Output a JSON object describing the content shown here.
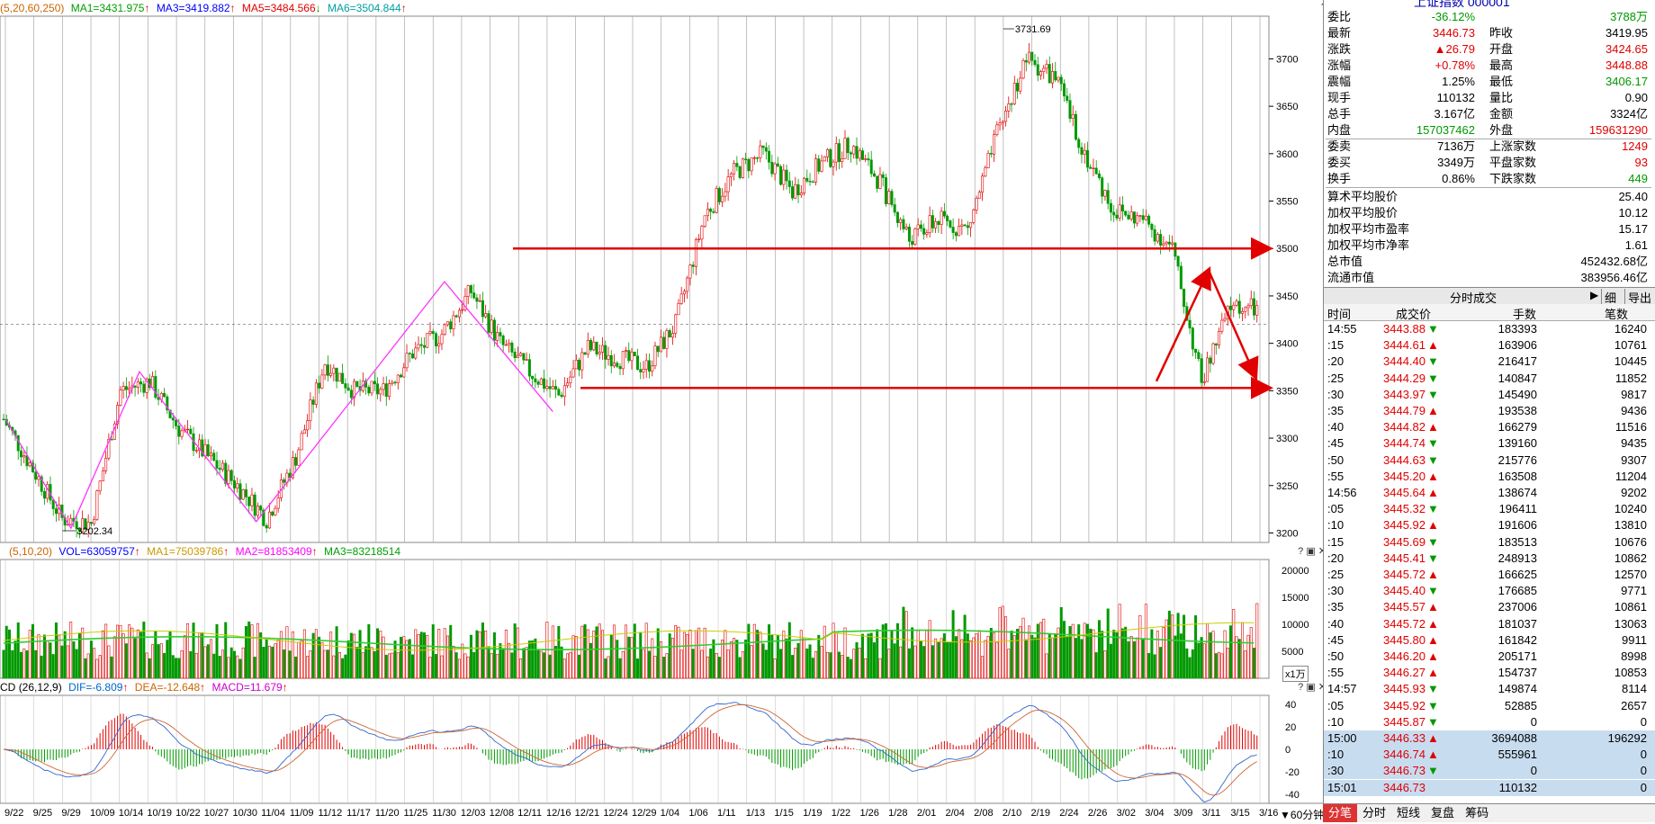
{
  "title_partial": "上证指数 000001",
  "kline": {
    "header": {
      "params": "(5,20,60,250)",
      "ma1": "MA1=3431.975",
      "ma3": "MA3=3419.882",
      "ma5": "MA5=3484.566",
      "ma6": "MA6=3504.844",
      "colors": {
        "ma1": "#00a000",
        "ma3": "#0000ff",
        "ma5": "#e00000",
        "ma6": "#00a0a0"
      }
    },
    "price_ticks": [
      "3700",
      "3650",
      "3600",
      "3550",
      "3500",
      "3450",
      "3400",
      "3350",
      "3300",
      "3250",
      "3200"
    ],
    "high_label": "3731.69",
    "low_label": "3202.34",
    "date_labels": [
      "9/22",
      "9/25",
      "9/29",
      "10/09",
      "10/14",
      "10/19",
      "10/22",
      "10/27",
      "10/30",
      "11/04",
      "11/09",
      "11/12",
      "11/17",
      "11/20",
      "11/25",
      "11/30",
      "12/03",
      "12/08",
      "12/11",
      "12/16",
      "12/21",
      "12/24",
      "12/29",
      "1/04",
      "1/06",
      "1/11",
      "1/13",
      "1/15",
      "1/19",
      "1/22",
      "1/26",
      "1/28",
      "2/01",
      "2/04",
      "2/08",
      "2/10",
      "2/19",
      "2/24",
      "2/26",
      "3/02",
      "3/04",
      "3/09",
      "3/11",
      "3/15",
      "3/16"
    ]
  },
  "volume": {
    "header": {
      "params": "(5,10,20)",
      "vol": "VOL=63059757",
      "ma1": "MA1=75039786",
      "ma2": "MA2=81853409",
      "ma3": "MA3=83218514"
    },
    "ticks": [
      "20000",
      "15000",
      "10000",
      "5000"
    ],
    "unit": "x1万"
  },
  "macd": {
    "header": {
      "label": "CD",
      "params": "(26,12,9)",
      "dif": "DIF=-6.809",
      "dea": "DEA=-12.648",
      "macd": "MACD=11.679"
    },
    "ticks": [
      "40",
      "20",
      "0",
      "-20",
      "-40"
    ]
  },
  "period_label": "60分钟",
  "quote": [
    {
      "k1": "委比",
      "v1": "-36.12%",
      "c1": "green",
      "v2": "3788万",
      "c2": "green"
    },
    {
      "k1": "最新",
      "v1": "3446.73",
      "c1": "red",
      "k2": "昨收",
      "v2": "3419.95",
      "c2": "blk"
    },
    {
      "k1": "涨跌",
      "v1": "▲26.79",
      "c1": "red",
      "k2": "开盘",
      "v2": "3424.65",
      "c2": "red"
    },
    {
      "k1": "涨幅",
      "v1": "+0.78%",
      "c1": "red",
      "k2": "最高",
      "v2": "3448.88",
      "c2": "red"
    },
    {
      "k1": "震幅",
      "v1": "1.25%",
      "c1": "blk",
      "k2": "最低",
      "v2": "3406.17",
      "c2": "green"
    },
    {
      "k1": "现手",
      "v1": "110132",
      "c1": "blk",
      "k2": "量比",
      "v2": "0.90",
      "c2": "blk"
    },
    {
      "k1": "总手",
      "v1": "3.167亿",
      "c1": "blk",
      "k2": "金额",
      "v2": "3324亿",
      "c2": "blk"
    },
    {
      "k1": "内盘",
      "v1": "157037462",
      "c1": "green",
      "k2": "外盘",
      "v2": "159631290",
      "c2": "red"
    },
    {
      "k1": "委卖",
      "v1": "7136万",
      "c1": "blk",
      "k2": "上涨家数",
      "v2": "1249",
      "c2": "red"
    },
    {
      "k1": "委买",
      "v1": "3349万",
      "c1": "blk",
      "k2": "平盘家数",
      "v2": "93",
      "c2": "red"
    },
    {
      "k1": "换手",
      "v1": "0.86%",
      "c1": "blk",
      "k2": "下跌家数",
      "v2": "449",
      "c2": "green"
    }
  ],
  "stats": [
    {
      "k": "算术平均股价",
      "v": "25.40"
    },
    {
      "k": "加权平均股价",
      "v": "10.12"
    },
    {
      "k": "加权平均市盈率",
      "v": "15.17"
    },
    {
      "k": "加权平均市净率",
      "v": "1.61"
    },
    {
      "k": "总市值",
      "v": "452432.68亿"
    },
    {
      "k": "流通市值",
      "v": "383956.46亿"
    }
  ],
  "ticks_panel": {
    "title": "分时成交",
    "btn_detail": "细",
    "btn_export": "导出",
    "cols": [
      "时间",
      "成交价",
      "手数",
      "笔数"
    ],
    "rows": [
      {
        "t": "14:55",
        "p": "3443.88",
        "d": "▼",
        "h": "183393",
        "n": "16240"
      },
      {
        "t": ":15",
        "p": "3444.61",
        "d": "▲",
        "h": "163906",
        "n": "10761"
      },
      {
        "t": ":20",
        "p": "3444.40",
        "d": "▼",
        "h": "216417",
        "n": "10445"
      },
      {
        "t": ":25",
        "p": "3444.29",
        "d": "▼",
        "h": "140847",
        "n": "11852"
      },
      {
        "t": ":30",
        "p": "3443.97",
        "d": "▼",
        "h": "145490",
        "n": "9817"
      },
      {
        "t": ":35",
        "p": "3444.79",
        "d": "▲",
        "h": "193538",
        "n": "9436"
      },
      {
        "t": ":40",
        "p": "3444.82",
        "d": "▲",
        "h": "166279",
        "n": "11516"
      },
      {
        "t": ":45",
        "p": "3444.74",
        "d": "▼",
        "h": "139160",
        "n": "9435"
      },
      {
        "t": ":50",
        "p": "3444.63",
        "d": "▼",
        "h": "215776",
        "n": "9307"
      },
      {
        "t": ":55",
        "p": "3445.20",
        "d": "▲",
        "h": "163508",
        "n": "11204"
      },
      {
        "t": "14:56",
        "p": "3445.64",
        "d": "▲",
        "h": "138674",
        "n": "9202"
      },
      {
        "t": ":05",
        "p": "3445.32",
        "d": "▼",
        "h": "196411",
        "n": "10240"
      },
      {
        "t": ":10",
        "p": "3445.92",
        "d": "▲",
        "h": "191606",
        "n": "13810"
      },
      {
        "t": ":15",
        "p": "3445.69",
        "d": "▼",
        "h": "183513",
        "n": "10676"
      },
      {
        "t": ":20",
        "p": "3445.41",
        "d": "▼",
        "h": "248913",
        "n": "10862"
      },
      {
        "t": ":25",
        "p": "3445.72",
        "d": "▲",
        "h": "166625",
        "n": "12570"
      },
      {
        "t": ":30",
        "p": "3445.40",
        "d": "▼",
        "h": "176685",
        "n": "9771"
      },
      {
        "t": ":35",
        "p": "3445.57",
        "d": "▲",
        "h": "237006",
        "n": "10861"
      },
      {
        "t": ":40",
        "p": "3445.72",
        "d": "▲",
        "h": "181037",
        "n": "13063"
      },
      {
        "t": ":45",
        "p": "3445.80",
        "d": "▲",
        "h": "161842",
        "n": "9911"
      },
      {
        "t": ":50",
        "p": "3446.20",
        "d": "▲",
        "h": "205171",
        "n": "8998"
      },
      {
        "t": ":55",
        "p": "3446.27",
        "d": "▲",
        "h": "154737",
        "n": "10853"
      },
      {
        "t": "14:57",
        "p": "3445.93",
        "d": "▼",
        "h": "149874",
        "n": "8114"
      },
      {
        "t": ":05",
        "p": "3445.92",
        "d": "▼",
        "h": "52885",
        "n": "2657"
      },
      {
        "t": ":10",
        "p": "3445.87",
        "d": "▼",
        "h": "0",
        "n": "0"
      },
      {
        "t": "15:00",
        "p": "3446.33",
        "d": "▲",
        "h": "3694088",
        "n": "196292",
        "hl": true
      },
      {
        "t": ":10",
        "p": "3446.74",
        "d": "▲",
        "h": "555961",
        "n": "0",
        "hl": true
      },
      {
        "t": ":30",
        "p": "3446.73",
        "d": "▼",
        "h": "0",
        "n": "0",
        "hl": true
      },
      {
        "t": "15:01",
        "p": "3446.73",
        "d": "",
        "h": "110132",
        "n": "0",
        "hl": true
      }
    ]
  },
  "bottom_tabs": [
    "分笔",
    "分时",
    "短线",
    "复盘",
    "筹码"
  ]
}
